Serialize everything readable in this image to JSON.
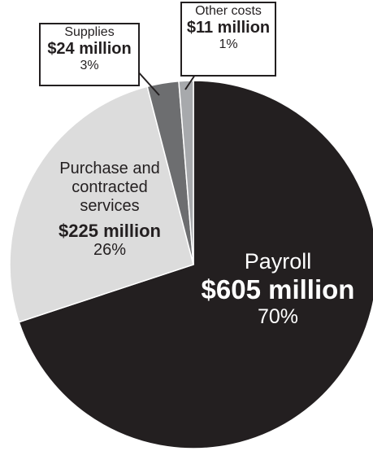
{
  "chart_data": {
    "type": "pie",
    "categories": [
      "Payroll",
      "Purchase and contracted services",
      "Supplies",
      "Other costs"
    ],
    "values": [
      605,
      225,
      24,
      11
    ],
    "value_labels": [
      "$605 million",
      "$225 million",
      "$24 million",
      "$11 million"
    ],
    "percent_labels": [
      "70%",
      "26%",
      "3%",
      "1%"
    ],
    "colors": [
      "#231f20",
      "#dcdcdc",
      "#6d6e70",
      "#a7a9ac"
    ]
  }
}
